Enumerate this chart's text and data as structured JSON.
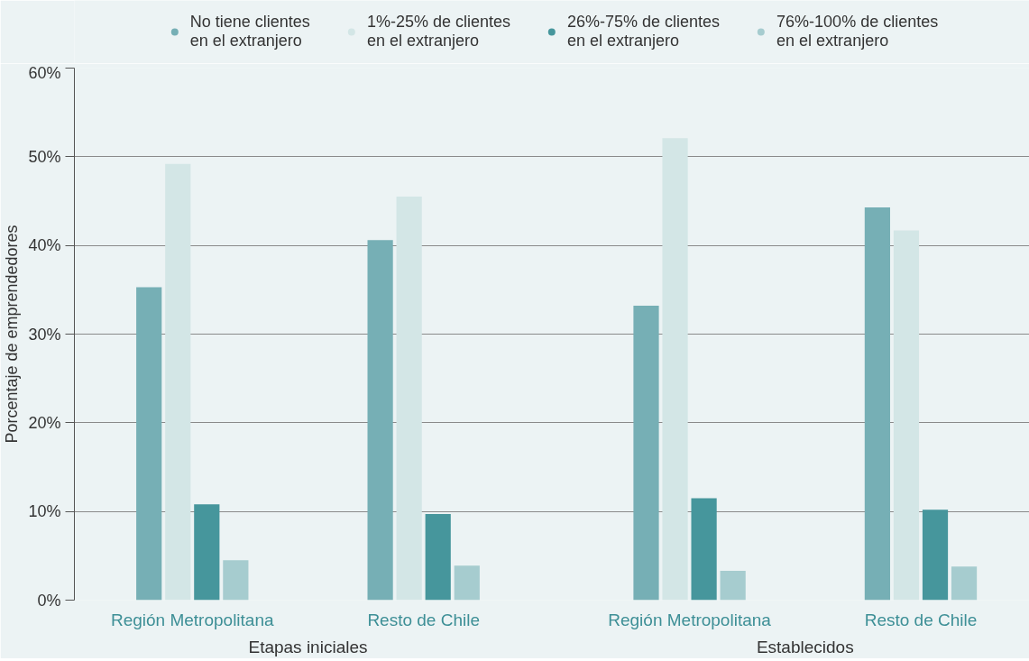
{
  "chart_data": {
    "type": "bar",
    "ylabel": "Porcentaje de emprendedores",
    "categories": [
      "Región Metropolitana",
      "Resto de Chile",
      "Región Metropolitana",
      "Resto de Chile"
    ],
    "annotations": [
      "Etapas iniciales",
      "Establecidos"
    ],
    "series": [
      {
        "name": "No tiene clientes\nen el extranjero",
        "color": "#76afb5",
        "values": [
          35.3,
          40.6,
          33.2,
          44.3
        ]
      },
      {
        "name": "1%-25% de clientes\nen el extranjero",
        "color": "#d3e6e6",
        "values": [
          49.2,
          45.5,
          52.1,
          41.7
        ]
      },
      {
        "name": "26%-75% de clientes\nen el extranjero",
        "color": "#46969c",
        "values": [
          10.8,
          9.7,
          11.5,
          10.2
        ]
      },
      {
        "name": "76%-100% de clientes\nen el extranjero",
        "color": "#a6cccf",
        "values": [
          4.5,
          3.9,
          3.3,
          3.8
        ]
      }
    ],
    "ylim": [
      0,
      60
    ],
    "yticks": [
      {
        "value": 0,
        "label": "0%"
      },
      {
        "value": 10,
        "label": "10%"
      },
      {
        "value": 20,
        "label": "20%"
      },
      {
        "value": 30,
        "label": "30%"
      },
      {
        "value": 40,
        "label": "40%"
      },
      {
        "value": 50,
        "label": "50%"
      },
      {
        "value": 60,
        "label": "60%"
      }
    ],
    "grid": "y",
    "legend": "top"
  }
}
